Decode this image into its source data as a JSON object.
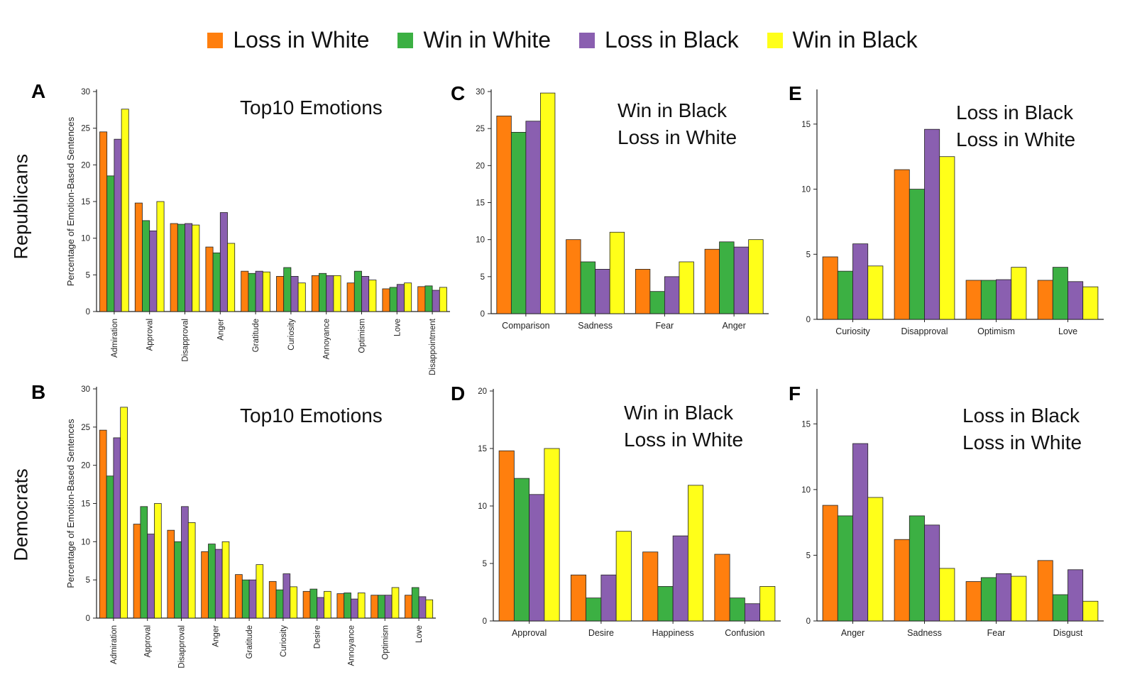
{
  "legend": [
    {
      "label": "Loss in White",
      "color": "#ff7f0e"
    },
    {
      "label": "Win in White",
      "color": "#3cb043"
    },
    {
      "label": "Loss in Black",
      "color": "#8a5fb0"
    },
    {
      "label": "Win in Black",
      "color": "#ffff19"
    }
  ],
  "row_labels": {
    "top": "Republicans",
    "bottom": "Democrats"
  },
  "chart_data": [
    {
      "id": "A",
      "type": "bar",
      "letter": "A",
      "title_lines": [
        "Top10 Emotions"
      ],
      "ylabel": "Percentage of Emotion-Based Sentences",
      "ylim": [
        0,
        30
      ],
      "yticks": [
        0,
        5,
        10,
        15,
        20,
        25,
        30
      ],
      "rotate_labels": true,
      "categories": [
        "Admiration",
        "Approval",
        "Disapproval",
        "Anger",
        "Gratitude",
        "Curiosity",
        "Annoyance",
        "Optimism",
        "Love",
        "Disappointment"
      ],
      "series": [
        {
          "name": "Loss in White",
          "values": [
            24.5,
            14.8,
            12.0,
            8.8,
            5.5,
            4.8,
            4.9,
            3.9,
            3.1,
            3.4
          ]
        },
        {
          "name": "Win in White",
          "values": [
            18.5,
            12.4,
            11.9,
            8.0,
            5.2,
            6.0,
            5.2,
            5.5,
            3.3,
            3.5
          ]
        },
        {
          "name": "Loss in Black",
          "values": [
            23.5,
            11.0,
            12.0,
            13.5,
            5.5,
            4.8,
            4.9,
            4.8,
            3.7,
            2.9
          ]
        },
        {
          "name": "Win in Black",
          "values": [
            27.6,
            15.0,
            11.8,
            9.3,
            5.4,
            3.9,
            4.9,
            4.3,
            3.9,
            3.3
          ]
        }
      ]
    },
    {
      "id": "C",
      "type": "bar",
      "letter": "C",
      "title_lines": [
        "Win in Black",
        "Loss in White"
      ],
      "ylabel": "",
      "ylim": [
        0,
        30
      ],
      "yticks": [
        0,
        5,
        10,
        15,
        20,
        25,
        30
      ],
      "rotate_labels": false,
      "categories": [
        "Comparison",
        "Sadness",
        "Fear",
        "Anger"
      ],
      "series": [
        {
          "name": "Loss in White",
          "values": [
            26.7,
            10.0,
            6.0,
            8.7
          ]
        },
        {
          "name": "Win in White",
          "values": [
            24.5,
            7.0,
            3.0,
            9.7
          ]
        },
        {
          "name": "Loss in Black",
          "values": [
            26.0,
            6.0,
            5.0,
            9.0
          ]
        },
        {
          "name": "Win in Black",
          "values": [
            29.8,
            11.0,
            7.0,
            10.0
          ]
        }
      ]
    },
    {
      "id": "E",
      "type": "bar",
      "letter": "E",
      "title_lines": [
        "Loss in Black",
        "Loss in White"
      ],
      "ylabel": "",
      "ylim": [
        0,
        17.5
      ],
      "yticks": [
        0,
        5,
        10,
        15
      ],
      "rotate_labels": false,
      "categories": [
        "Curiosity",
        "Disapproval",
        "Optimism",
        "Love"
      ],
      "series": [
        {
          "name": "Loss in White",
          "values": [
            4.8,
            11.5,
            3.0,
            3.0
          ]
        },
        {
          "name": "Win in White",
          "values": [
            3.7,
            10.0,
            3.0,
            4.0
          ]
        },
        {
          "name": "Loss in Black",
          "values": [
            5.8,
            14.6,
            3.05,
            2.9
          ]
        },
        {
          "name": "Win in Black",
          "values": [
            4.1,
            12.5,
            4.0,
            2.5
          ]
        }
      ]
    },
    {
      "id": "B",
      "type": "bar",
      "letter": "B",
      "title_lines": [
        "Top10 Emotions"
      ],
      "ylabel": "Percentage of Emotion-Based Sentences",
      "ylim": [
        0,
        30
      ],
      "yticks": [
        0,
        5,
        10,
        15,
        20,
        25,
        30
      ],
      "rotate_labels": true,
      "categories": [
        "Admiration",
        "Approval",
        "Disapproval",
        "Anger",
        "Gratitude",
        "Curiosity",
        "Desire",
        "Annoyance",
        "Optimism",
        "Love"
      ],
      "series": [
        {
          "name": "Loss in White",
          "values": [
            24.6,
            12.3,
            11.5,
            8.7,
            5.7,
            4.8,
            3.5,
            3.2,
            3.0,
            3.0
          ]
        },
        {
          "name": "Win in White",
          "values": [
            18.6,
            14.6,
            10.0,
            9.7,
            5.0,
            3.7,
            3.8,
            3.3,
            3.0,
            4.0
          ]
        },
        {
          "name": "Loss in Black",
          "values": [
            23.6,
            11.0,
            14.6,
            9.0,
            5.0,
            5.8,
            2.7,
            2.5,
            3.0,
            2.8
          ]
        },
        {
          "name": "Win in Black",
          "values": [
            27.6,
            15.0,
            12.5,
            10.0,
            7.0,
            4.1,
            3.5,
            3.3,
            4.0,
            2.4
          ]
        }
      ]
    },
    {
      "id": "D",
      "type": "bar",
      "letter": "D",
      "title_lines": [
        "Win in Black",
        "Loss in White"
      ],
      "ylabel": "",
      "ylim": [
        0,
        20
      ],
      "yticks": [
        0,
        5,
        10,
        15,
        20
      ],
      "rotate_labels": false,
      "categories": [
        "Approval",
        "Desire",
        "Happiness",
        "Confusion"
      ],
      "series": [
        {
          "name": "Loss in White",
          "values": [
            14.8,
            4.0,
            6.0,
            5.8
          ]
        },
        {
          "name": "Win in White",
          "values": [
            12.4,
            2.0,
            3.0,
            2.0
          ]
        },
        {
          "name": "Loss in Black",
          "values": [
            11.0,
            4.0,
            7.4,
            1.5
          ]
        },
        {
          "name": "Win in Black",
          "values": [
            15.0,
            7.8,
            11.8,
            3.0
          ]
        }
      ]
    },
    {
      "id": "F",
      "type": "bar",
      "letter": "F",
      "title_lines": [
        "Loss in Black",
        "Loss in White"
      ],
      "ylabel": "",
      "ylim": [
        0,
        17.5
      ],
      "yticks": [
        0,
        5,
        10,
        15
      ],
      "rotate_labels": false,
      "categories": [
        "Anger",
        "Sadness",
        "Fear",
        "Disgust"
      ],
      "series": [
        {
          "name": "Loss in White",
          "values": [
            8.8,
            6.2,
            3.0,
            4.6
          ]
        },
        {
          "name": "Win in White",
          "values": [
            8.0,
            8.0,
            3.3,
            2.0
          ]
        },
        {
          "name": "Loss in Black",
          "values": [
            13.5,
            7.3,
            3.6,
            3.9
          ]
        },
        {
          "name": "Win in Black",
          "values": [
            9.4,
            4.0,
            3.4,
            1.5
          ]
        }
      ]
    }
  ]
}
